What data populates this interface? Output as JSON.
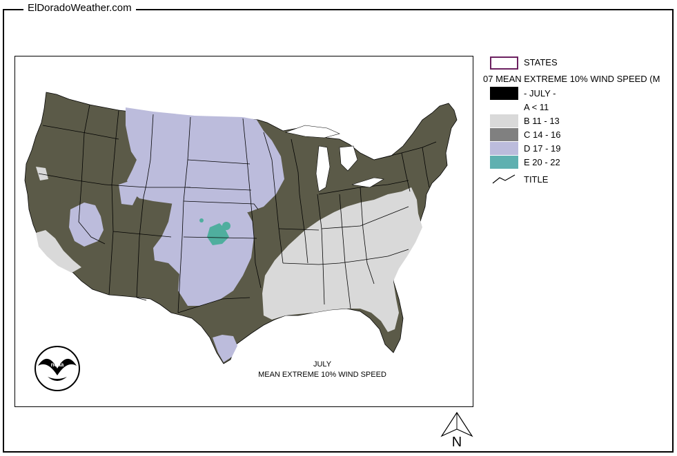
{
  "site": {
    "title": "ElDoradoWeather.com"
  },
  "map": {
    "caption_line1": "JULY",
    "caption_line2": "MEAN EXTREME 10% WIND SPEED",
    "colors": {
      "c_class": "#5b5a48",
      "d_class": "#bcbcdc",
      "b_class": "#d9d9d9",
      "e_class": "#4fae9e",
      "state_lines": "#000000",
      "water": "#ffffff"
    },
    "logo": "noaa-logo"
  },
  "legend": {
    "states_label": "STATES",
    "layer_title": "07 MEAN EXTREME 10% WIND SPEED (M",
    "items": [
      {
        "label": "- JULY -",
        "color": "#000000"
      },
      {
        "label": "A < 11",
        "color": "#ffffff"
      },
      {
        "label": "B 11 - 13",
        "color": "#d9d9d9"
      },
      {
        "label": "C 14 - 16",
        "color": "#808080"
      },
      {
        "label": "D 17 - 19",
        "color": "#bcbcdc"
      },
      {
        "label": "E 20 - 22",
        "color": "#5fb0b0"
      }
    ],
    "title_label": "TITLE",
    "states_border_color": "#6b1f5f"
  },
  "north_arrow": {
    "label": "N"
  }
}
